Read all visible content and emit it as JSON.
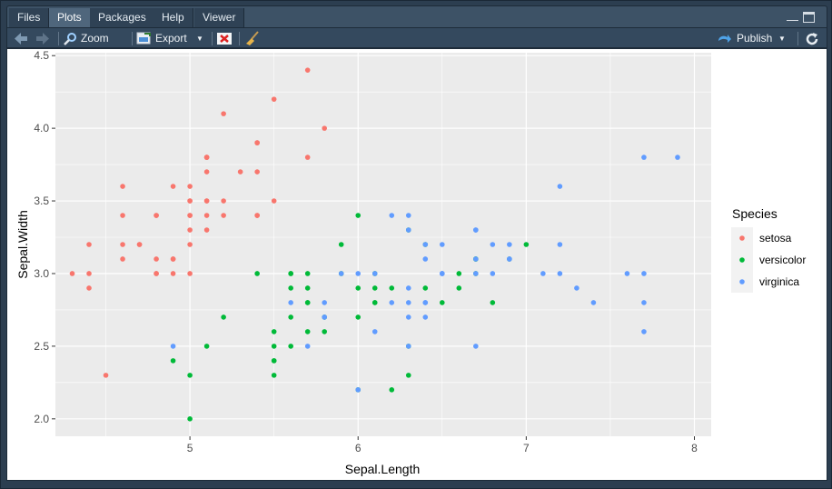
{
  "tabs": [
    {
      "label": "Files"
    },
    {
      "label": "Plots"
    },
    {
      "label": "Packages"
    },
    {
      "label": "Help"
    },
    {
      "label": "Viewer"
    }
  ],
  "active_tab": "Plots",
  "toolbar": {
    "zoom_label": "Zoom",
    "export_label": "Export",
    "publish_label": "Publish"
  },
  "icons": {
    "back": "arrow-left-icon",
    "forward": "arrow-right-icon",
    "zoom": "zoom-icon",
    "export": "export-icon",
    "remove": "remove-plot-icon",
    "clear": "broom-icon",
    "publish": "publish-icon",
    "refresh": "refresh-icon"
  },
  "colors": {
    "setosa": "#F8766D",
    "versicolor": "#00BA38",
    "virginica": "#619CFF",
    "panel_bg": "#EBEBEB"
  },
  "chart_data": {
    "type": "scatter",
    "title": "",
    "xlabel": "Sepal.Length",
    "ylabel": "Sepal.Width",
    "xlim": [
      4.2,
      8.1
    ],
    "ylim": [
      1.88,
      4.52
    ],
    "xticks": [
      5,
      6,
      7,
      8
    ],
    "yticks": [
      2.0,
      2.5,
      3.0,
      3.5,
      4.0,
      4.5
    ],
    "ytick_labels": [
      "2.0",
      "2.5",
      "3.0",
      "3.5",
      "4.0",
      "4.5"
    ],
    "grid": true,
    "legend": {
      "title": "Species",
      "position": "right"
    },
    "series": [
      {
        "name": "setosa",
        "color": "#F8766D",
        "points": [
          [
            5.1,
            3.5
          ],
          [
            4.9,
            3.0
          ],
          [
            4.7,
            3.2
          ],
          [
            4.6,
            3.1
          ],
          [
            5.0,
            3.6
          ],
          [
            5.4,
            3.9
          ],
          [
            4.6,
            3.4
          ],
          [
            5.0,
            3.4
          ],
          [
            4.4,
            2.9
          ],
          [
            4.9,
            3.1
          ],
          [
            5.4,
            3.7
          ],
          [
            4.8,
            3.4
          ],
          [
            4.8,
            3.0
          ],
          [
            4.3,
            3.0
          ],
          [
            5.8,
            4.0
          ],
          [
            5.7,
            4.4
          ],
          [
            5.4,
            3.9
          ],
          [
            5.1,
            3.5
          ],
          [
            5.7,
            3.8
          ],
          [
            5.1,
            3.8
          ],
          [
            5.4,
            3.4
          ],
          [
            5.1,
            3.7
          ],
          [
            4.6,
            3.6
          ],
          [
            5.1,
            3.3
          ],
          [
            4.8,
            3.4
          ],
          [
            5.0,
            3.0
          ],
          [
            5.0,
            3.4
          ],
          [
            5.2,
            3.5
          ],
          [
            5.2,
            3.4
          ],
          [
            4.7,
            3.2
          ],
          [
            4.8,
            3.1
          ],
          [
            5.4,
            3.4
          ],
          [
            5.2,
            4.1
          ],
          [
            5.5,
            4.2
          ],
          [
            4.9,
            3.1
          ],
          [
            5.0,
            3.2
          ],
          [
            5.5,
            3.5
          ],
          [
            4.9,
            3.6
          ],
          [
            4.4,
            3.0
          ],
          [
            5.1,
            3.4
          ],
          [
            5.0,
            3.5
          ],
          [
            4.5,
            2.3
          ],
          [
            4.4,
            3.2
          ],
          [
            5.0,
            3.5
          ],
          [
            5.1,
            3.8
          ],
          [
            4.8,
            3.0
          ],
          [
            5.1,
            3.8
          ],
          [
            4.6,
            3.2
          ],
          [
            5.3,
            3.7
          ],
          [
            5.0,
            3.3
          ]
        ]
      },
      {
        "name": "versicolor",
        "color": "#00BA38",
        "points": [
          [
            7.0,
            3.2
          ],
          [
            6.4,
            3.2
          ],
          [
            6.9,
            3.1
          ],
          [
            5.5,
            2.3
          ],
          [
            6.5,
            2.8
          ],
          [
            5.7,
            2.8
          ],
          [
            6.3,
            3.3
          ],
          [
            4.9,
            2.4
          ],
          [
            6.6,
            2.9
          ],
          [
            5.2,
            2.7
          ],
          [
            5.0,
            2.0
          ],
          [
            5.9,
            3.0
          ],
          [
            6.0,
            2.2
          ],
          [
            6.1,
            2.9
          ],
          [
            5.6,
            2.9
          ],
          [
            6.7,
            3.1
          ],
          [
            5.6,
            3.0
          ],
          [
            5.8,
            2.7
          ],
          [
            6.2,
            2.2
          ],
          [
            5.6,
            2.5
          ],
          [
            5.9,
            3.2
          ],
          [
            6.1,
            2.8
          ],
          [
            6.3,
            2.5
          ],
          [
            6.1,
            2.8
          ],
          [
            6.4,
            2.9
          ],
          [
            6.6,
            3.0
          ],
          [
            6.8,
            2.8
          ],
          [
            6.7,
            3.0
          ],
          [
            6.0,
            2.9
          ],
          [
            5.7,
            2.6
          ],
          [
            5.5,
            2.4
          ],
          [
            5.5,
            2.4
          ],
          [
            5.8,
            2.7
          ],
          [
            6.0,
            2.7
          ],
          [
            5.4,
            3.0
          ],
          [
            6.0,
            3.4
          ],
          [
            6.7,
            3.1
          ],
          [
            6.3,
            2.3
          ],
          [
            5.6,
            3.0
          ],
          [
            5.5,
            2.5
          ],
          [
            5.5,
            2.6
          ],
          [
            6.1,
            3.0
          ],
          [
            5.8,
            2.6
          ],
          [
            5.0,
            2.3
          ],
          [
            5.6,
            2.7
          ],
          [
            5.7,
            3.0
          ],
          [
            5.7,
            2.9
          ],
          [
            6.2,
            2.9
          ],
          [
            5.1,
            2.5
          ],
          [
            5.7,
            2.8
          ]
        ]
      },
      {
        "name": "virginica",
        "color": "#619CFF",
        "points": [
          [
            6.3,
            3.3
          ],
          [
            5.8,
            2.7
          ],
          [
            7.1,
            3.0
          ],
          [
            6.3,
            2.9
          ],
          [
            6.5,
            3.0
          ],
          [
            7.6,
            3.0
          ],
          [
            4.9,
            2.5
          ],
          [
            7.3,
            2.9
          ],
          [
            6.7,
            2.5
          ],
          [
            7.2,
            3.6
          ],
          [
            6.5,
            3.2
          ],
          [
            6.4,
            2.7
          ],
          [
            6.8,
            3.0
          ],
          [
            5.7,
            2.5
          ],
          [
            5.8,
            2.8
          ],
          [
            6.4,
            3.2
          ],
          [
            6.5,
            3.0
          ],
          [
            7.7,
            3.8
          ],
          [
            7.7,
            2.6
          ],
          [
            6.0,
            2.2
          ],
          [
            6.9,
            3.2
          ],
          [
            5.6,
            2.8
          ],
          [
            7.7,
            2.8
          ],
          [
            6.3,
            2.7
          ],
          [
            6.7,
            3.3
          ],
          [
            7.2,
            3.2
          ],
          [
            6.2,
            2.8
          ],
          [
            6.1,
            3.0
          ],
          [
            6.4,
            2.8
          ],
          [
            7.2,
            3.0
          ],
          [
            7.4,
            2.8
          ],
          [
            7.9,
            3.8
          ],
          [
            6.4,
            2.8
          ],
          [
            6.3,
            2.8
          ],
          [
            6.1,
            2.6
          ],
          [
            7.7,
            3.0
          ],
          [
            6.3,
            3.4
          ],
          [
            6.4,
            3.1
          ],
          [
            6.0,
            3.0
          ],
          [
            6.9,
            3.1
          ],
          [
            6.7,
            3.1
          ],
          [
            6.9,
            3.1
          ],
          [
            5.8,
            2.7
          ],
          [
            6.8,
            3.2
          ],
          [
            6.7,
            3.3
          ],
          [
            6.7,
            3.0
          ],
          [
            6.3,
            2.5
          ],
          [
            6.5,
            3.0
          ],
          [
            6.2,
            3.4
          ],
          [
            5.9,
            3.0
          ]
        ]
      }
    ]
  }
}
